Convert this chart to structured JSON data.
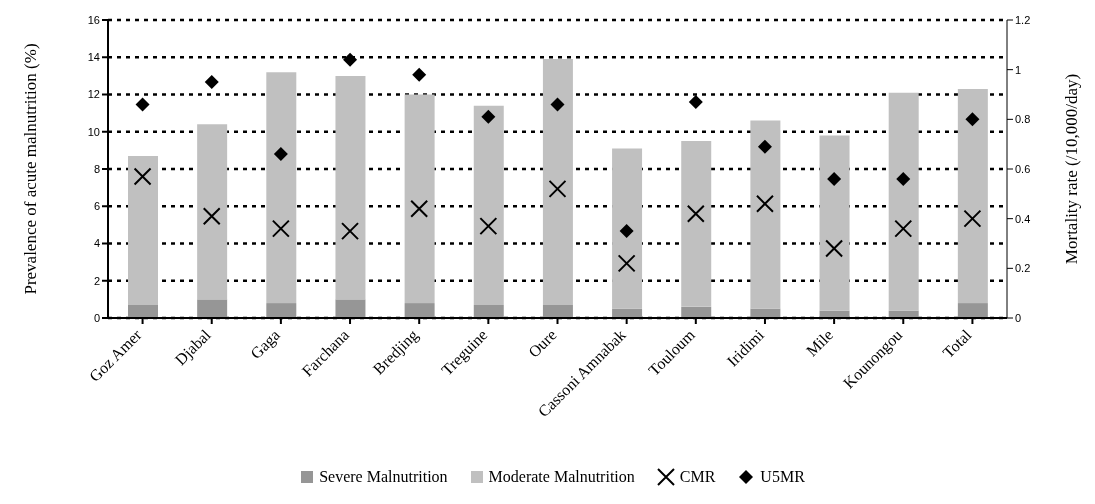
{
  "chart_data": {
    "type": "bar",
    "stacked": true,
    "categories": [
      "Goz Amer",
      "Djabal",
      "Gaga",
      "Farchana",
      "Bredjing",
      "Treguine",
      "Oure",
      "Cassoni Amnabak",
      "Touloum",
      "Iridimi",
      "Mile",
      "Kounongou",
      "Total"
    ],
    "series": [
      {
        "name": "Severe Malnutrition",
        "color": "#969696",
        "values": [
          0.7,
          1.0,
          0.8,
          1.0,
          0.8,
          0.7,
          0.7,
          0.5,
          0.6,
          0.5,
          0.4,
          0.4,
          0.8
        ]
      },
      {
        "name": "Moderate Malnutrition",
        "color": "#c0c0c0",
        "values": [
          8.0,
          9.4,
          12.4,
          12.0,
          11.2,
          10.7,
          13.2,
          8.6,
          8.9,
          10.1,
          9.4,
          11.7,
          11.5
        ]
      },
      {
        "name": "CMR",
        "type": "scatter",
        "axis": "y2",
        "marker": "cross",
        "color": "#000000",
        "values": [
          0.57,
          0.41,
          0.36,
          0.35,
          0.44,
          0.37,
          0.52,
          0.22,
          0.42,
          0.46,
          0.28,
          0.36,
          0.4
        ]
      },
      {
        "name": "U5MR",
        "type": "scatter",
        "axis": "y2",
        "marker": "diamond",
        "color": "#000000",
        "values": [
          0.86,
          0.95,
          0.66,
          1.04,
          0.98,
          0.81,
          0.86,
          0.35,
          0.87,
          0.69,
          0.56,
          0.56,
          0.8
        ]
      }
    ],
    "ylabel": "Prevalence of acute malnutrition (%)",
    "y2label": "Mortality rate (/10,000/day)",
    "ylim": [
      0,
      16
    ],
    "yticks": [
      0,
      2,
      4,
      6,
      8,
      10,
      12,
      14,
      16
    ],
    "y2lim": [
      0,
      1.2
    ],
    "y2ticks": [
      0,
      0.2,
      0.4,
      0.6,
      0.8,
      1,
      1.2
    ],
    "grid": "y",
    "legend": "bottom"
  }
}
